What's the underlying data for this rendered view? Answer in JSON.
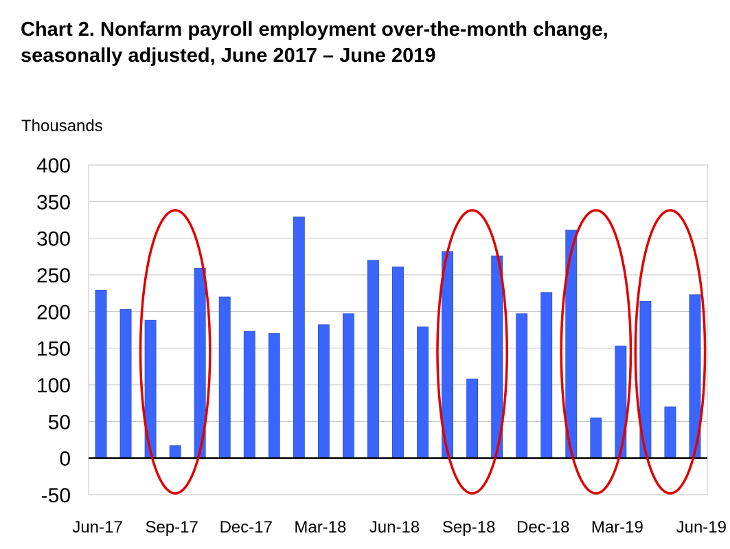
{
  "title_line1": "Chart 2. Nonfarm payroll employment over-the-month change,",
  "title_line2": "seasonally adjusted, June 2017 – June 2019",
  "colors": {
    "bar": "#3a66ff",
    "ellipse": "#e00000",
    "grid": "#c0c0c0",
    "axis": "#000000"
  },
  "chart_data": {
    "type": "bar",
    "title": "Chart 2. Nonfarm payroll employment over-the-month change, seasonally adjusted, June 2017 – June 2019",
    "ylabel": "Thousands",
    "xlabel": "",
    "ylim": [
      -50,
      400
    ],
    "yticks": [
      400,
      350,
      300,
      250,
      200,
      150,
      100,
      50,
      0,
      -50
    ],
    "grid": true,
    "categories": [
      "Jun-17",
      "Jul-17",
      "Aug-17",
      "Sep-17",
      "Oct-17",
      "Nov-17",
      "Dec-17",
      "Jan-18",
      "Feb-18",
      "Mar-18",
      "Apr-18",
      "May-18",
      "Jun-18",
      "Jul-18",
      "Aug-18",
      "Sep-18",
      "Oct-18",
      "Nov-18",
      "Dec-18",
      "Jan-19",
      "Feb-19",
      "Mar-19",
      "Apr-19",
      "May-19",
      "Jun-19"
    ],
    "xtick_labels": [
      "Jun-17",
      "Sep-17",
      "Dec-17",
      "Mar-18",
      "Jun-18",
      "Sep-18",
      "Dec-18",
      "Mar-19",
      "Jun-19"
    ],
    "values": [
      229,
      203,
      188,
      17,
      259,
      220,
      173,
      170,
      329,
      182,
      197,
      270,
      261,
      179,
      282,
      108,
      276,
      197,
      226,
      311,
      55,
      153,
      214,
      70,
      223
    ],
    "highlighted_groups": [
      [
        "Aug-17",
        "Sep-17",
        "Oct-17"
      ],
      [
        "Aug-18",
        "Sep-18",
        "Oct-18"
      ],
      [
        "Jan-19",
        "Feb-19",
        "Mar-19"
      ],
      [
        "Apr-19",
        "May-19",
        "Jun-19"
      ]
    ]
  }
}
